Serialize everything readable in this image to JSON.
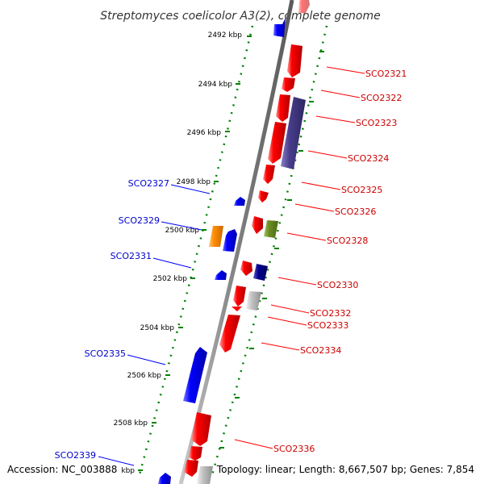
{
  "title": "Streptomyces coelicolor A3(2), complete genome",
  "footer": {
    "accession": "Accession: NC_003888",
    "topology": "Topology: linear; Length: 8,667,507 bp; Genes: 7,854"
  },
  "colors": {
    "forward_gene": "#ff0000",
    "reverse_gene": "#0000ff",
    "forward_label": "#cc0000",
    "reverse_label": "#0000cc",
    "backbone": "#808080",
    "tick_dots": "#008000",
    "other_orange": "#ff8c00",
    "other_olive": "#6b8e23",
    "other_navy": "#00008b",
    "other_slate": "#483d8b",
    "other_gray": "#c0c0c0"
  },
  "kbp_marks": [
    "2492 kbp",
    "2494 kbp",
    "2496 kbp",
    "2498 kbp",
    "2500 kbp",
    "2502 kbp",
    "2504 kbp",
    "2506 kbp",
    "2508 kbp",
    "kbp"
  ],
  "forward_labels": [
    "SCO2321",
    "SCO2322",
    "SCO2323",
    "SCO2324",
    "SCO2325",
    "SCO2326",
    "SCO2328",
    "SCO2330",
    "SCO2332",
    "SCO2333",
    "SCO2334",
    "SCO2336"
  ],
  "reverse_labels": [
    "SCO2327",
    "SCO2329",
    "SCO2331",
    "SCO2335",
    "SCO2339"
  ]
}
